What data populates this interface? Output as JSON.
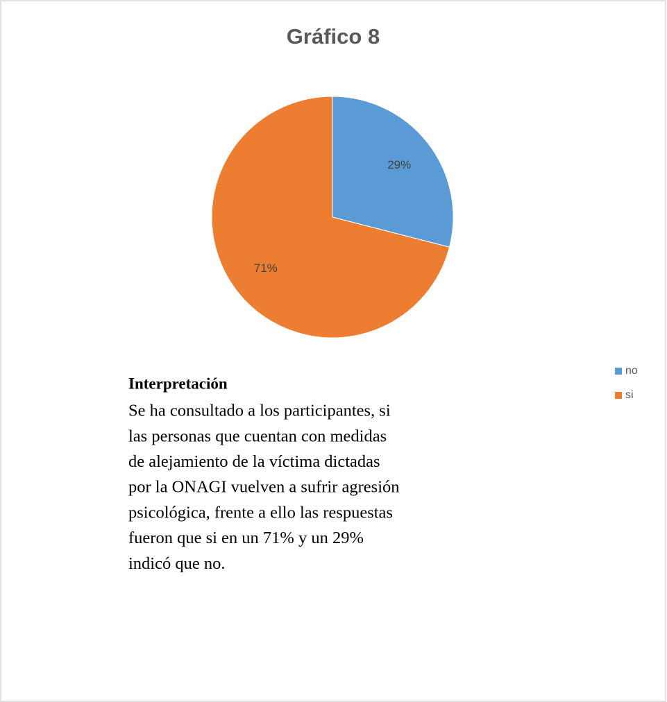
{
  "chart_data": {
    "type": "pie",
    "title": "Gráfico 8",
    "categories": [
      "no",
      "si"
    ],
    "values": [
      29,
      71
    ],
    "value_labels": [
      "29%",
      "71%"
    ],
    "colors": [
      "#5b9bd5",
      "#ed7d31"
    ],
    "legend": "right",
    "annotation_title": "Interpretación",
    "annotation_lines": [
      "Se ha consultado a los participantes, si",
      "las personas que cuentan con medidas",
      "de alejamiento de la víctima dictadas",
      "por la ONAGI vuelven a sufrir agresión",
      "psicológica, frente a ello las respuestas",
      "fueron que si en un 71% y un 29%",
      "indicó que no."
    ]
  }
}
